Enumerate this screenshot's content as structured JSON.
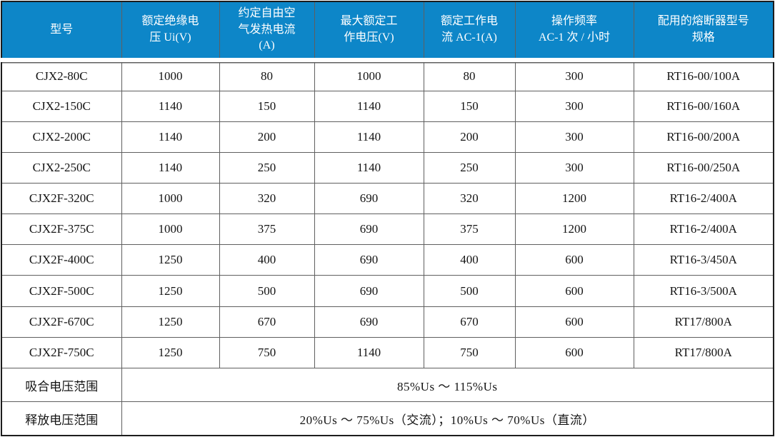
{
  "table": {
    "columns": [
      {
        "id": "model",
        "label": "型号"
      },
      {
        "id": "ui",
        "label": "额定绝缘电\n压 Ui(V)"
      },
      {
        "id": "ith",
        "label": "约定自由空\n气发热电流\n(A)"
      },
      {
        "id": "ue_max",
        "label": "最大额定工\n作电压(V)"
      },
      {
        "id": "ie_ac1",
        "label": "额定工作电\n流 AC-1(A)"
      },
      {
        "id": "op_freq",
        "label": "操作频率\nAC-1 次 / 小时"
      },
      {
        "id": "fuse",
        "label": "配用的熔断器型号\n规格"
      }
    ],
    "rows": [
      [
        "CJX2-80C",
        "1000",
        "80",
        "1000",
        "80",
        "300",
        "RT16-00/100A"
      ],
      [
        "CJX2-150C",
        "1140",
        "150",
        "1140",
        "150",
        "300",
        "RT16-00/160A"
      ],
      [
        "CJX2-200C",
        "1140",
        "200",
        "1140",
        "200",
        "300",
        "RT16-00/200A"
      ],
      [
        "CJX2-250C",
        "1140",
        "250",
        "1140",
        "250",
        "300",
        "RT16-00/250A"
      ],
      [
        "CJX2F-320C",
        "1000",
        "320",
        "690",
        "320",
        "1200",
        "RT16-2/400A"
      ],
      [
        "CJX2F-375C",
        "1000",
        "375",
        "690",
        "375",
        "1200",
        "RT16-2/400A"
      ],
      [
        "CJX2F-400C",
        "1250",
        "400",
        "690",
        "400",
        "600",
        "RT16-3/450A"
      ],
      [
        "CJX2F-500C",
        "1250",
        "500",
        "690",
        "500",
        "600",
        "RT16-3/500A"
      ],
      [
        "CJX2F-670C",
        "1250",
        "670",
        "690",
        "670",
        "600",
        "RT17/800A"
      ],
      [
        "CJX2F-750C",
        "1250",
        "750",
        "1140",
        "750",
        "600",
        "RT17/800A"
      ]
    ],
    "footer_rows": [
      {
        "label": "吸合电压范围",
        "value": "85%Us ～ 115%Us"
      },
      {
        "label": "释放电压范围",
        "value": "20%Us ～ 75%Us（交流）；10%Us ～ 70%Us（直流）"
      }
    ]
  },
  "colors": {
    "header_bg": "#0d86c8",
    "header_text": "#ffffff",
    "body_text": "#141414",
    "grid_line": "#5f5f5f",
    "outer_border": "#1c1c1c"
  }
}
